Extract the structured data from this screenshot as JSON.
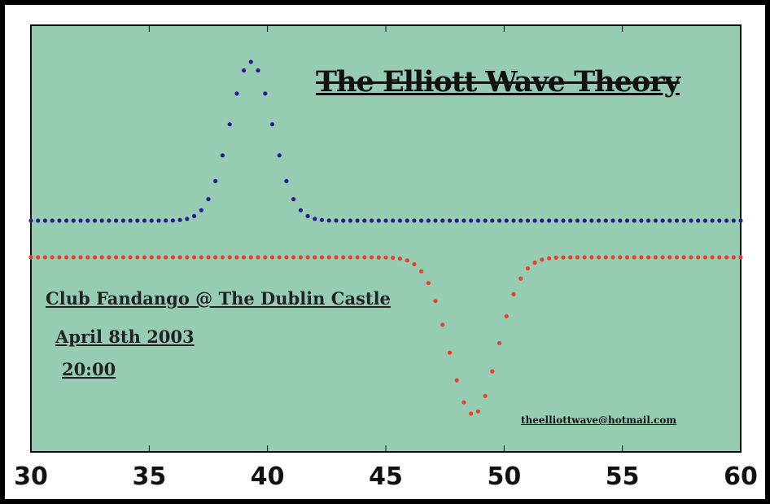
{
  "chart_data": {
    "type": "scatter",
    "title": "The Elliott Wave Theory",
    "xlim": [
      30,
      60
    ],
    "x_ticks": [
      "30",
      "35",
      "40",
      "45",
      "50",
      "55",
      "60"
    ],
    "x_tick_values": [
      30,
      35,
      40,
      45,
      50,
      55,
      60
    ],
    "grid": false,
    "background_color": "#96cdb2",
    "series": [
      {
        "color": "#2a1a8c",
        "shape": "gaussian-peak",
        "baseline": 0,
        "amplitude": 1,
        "center": 39.3,
        "sigma": 0.9,
        "x_start": 30,
        "x_end": 60,
        "x_step": 0.3
      },
      {
        "color": "#e8402a",
        "shape": "gaussian-trough",
        "baseline": 0,
        "amplitude": -1,
        "center": 48.7,
        "sigma": 1.0,
        "x_start": 30,
        "x_end": 60,
        "x_step": 0.3
      }
    ],
    "annotations": {
      "venue": "Club Fandango @ The Dublin Castle",
      "date": "April 8th 2003",
      "time": "20:00",
      "email": "theelliottwave@hotmail.com"
    }
  }
}
